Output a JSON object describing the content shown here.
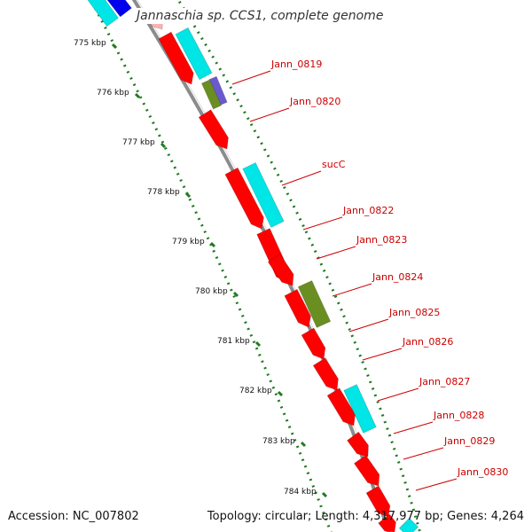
{
  "title": "Jannaschia sp. CCS1, complete genome",
  "footer": {
    "accession": "Accession: NC_007802",
    "summary": "Topology: circular; Length: 4,317,977 bp; Genes: 4,264"
  },
  "colors": {
    "forward_gene": "#ff0000",
    "reverse_gene": "#00e5e5",
    "olive_feature": "#6b8e23",
    "blue_feature": "#0000ee",
    "purple_feature": "#6a5acd",
    "backbone": "#8c8c8c",
    "tick": "#1f7a1f",
    "label": "#cc0000"
  },
  "scale_labels": [
    "775 kbp",
    "776 kbp",
    "777 kbp",
    "778 kbp",
    "779 kbp",
    "780 kbp",
    "781 kbp",
    "782 kbp",
    "783 kbp",
    "784 kbp"
  ],
  "gene_labels": [
    "Jann_0819",
    "Jann_0820",
    "sucC",
    "Jann_0822",
    "Jann_0823",
    "Jann_0824",
    "Jann_0825",
    "Jann_0826",
    "Jann_0827",
    "Jann_0828",
    "Jann_0829",
    "Jann_0830"
  ]
}
